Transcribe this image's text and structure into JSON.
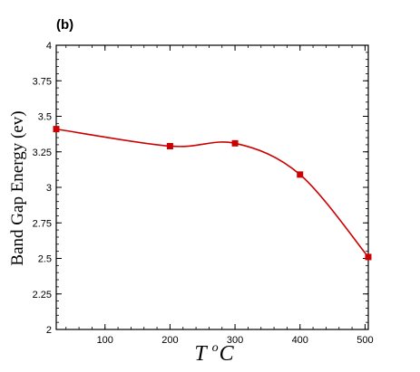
{
  "chart_data": {
    "type": "line",
    "panel_label": "(b)",
    "xlabel": "T",
    "xlabel_superscript": "o",
    "xlabel_suffix": "C",
    "ylabel": "Band Gap Energy (ev)",
    "xlim": [
      25,
      505
    ],
    "ylim": [
      2,
      4
    ],
    "x_ticks": [
      100,
      200,
      300,
      400,
      500
    ],
    "y_ticks": [
      2,
      2.25,
      2.5,
      2.75,
      3,
      3.25,
      3.5,
      3.75,
      4
    ],
    "y_tick_labels": [
      "2",
      "2.25",
      "2.5",
      "2.75",
      "3",
      "3.25",
      "3.5",
      "3.75",
      "4"
    ],
    "grid": false,
    "series": [
      {
        "x": [
          25,
          200,
          300,
          400,
          505
        ],
        "y": [
          3.41,
          3.29,
          3.31,
          3.09,
          2.51
        ],
        "color": "#cc0000",
        "marker": "square",
        "smooth": true
      }
    ]
  }
}
